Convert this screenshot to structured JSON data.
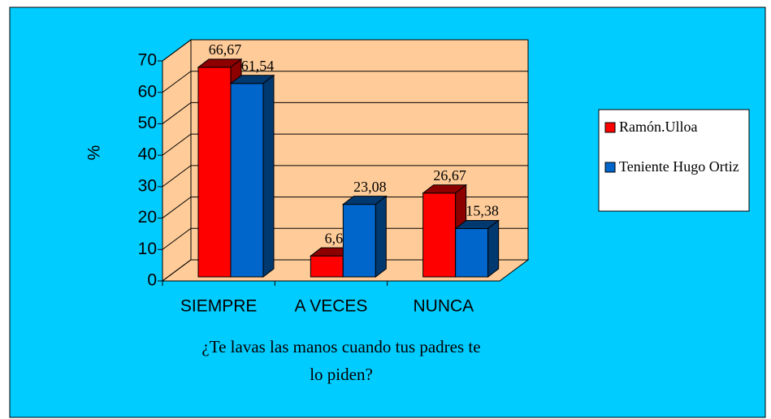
{
  "chart_data": {
    "type": "bar3d",
    "categories": [
      "SIEMPRE",
      "A VECES",
      "NUNCA"
    ],
    "series": [
      {
        "name": "Ramón.Ulloa",
        "color": "#ff0000",
        "values": [
          66.67,
          6.67,
          26.67
        ],
        "value_labels": [
          "66,67",
          "6,67",
          "26,67"
        ]
      },
      {
        "name": "Teniente Hugo Ortiz",
        "color": "#0066cc",
        "values": [
          61.54,
          23.08,
          15.38
        ],
        "value_labels": [
          "61,54",
          "23,08",
          "15,38"
        ]
      }
    ],
    "ylim": [
      0,
      70
    ],
    "yticks": [
      0,
      10,
      20,
      30,
      40,
      50,
      60,
      70
    ],
    "ylabel": "%",
    "xlabel": "¿Te lavas las manos cuando tus padres te lo piden?",
    "grid": true,
    "legend": "right",
    "wall_color": "#ffcc99",
    "background": "#00ccff"
  }
}
